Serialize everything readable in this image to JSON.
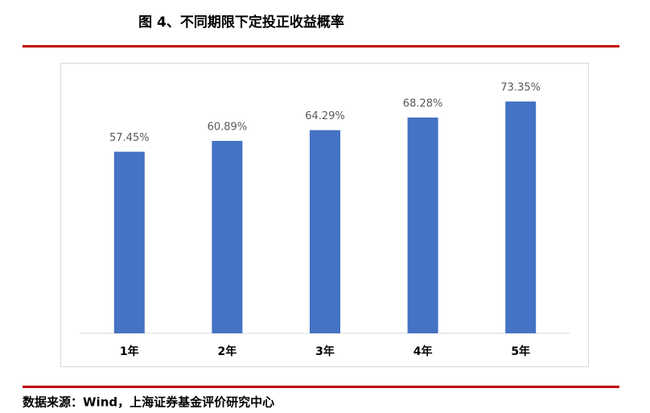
{
  "chart_data": {
    "type": "bar",
    "title": "图 4、不同期限下定投正收益概率",
    "categories": [
      "1年",
      "2年",
      "3年",
      "4年",
      "5年"
    ],
    "values": [
      57.45,
      60.89,
      64.29,
      68.28,
      73.35
    ],
    "value_labels": [
      "57.45%",
      "60.89%",
      "64.29%",
      "68.28%",
      "73.35%"
    ],
    "color": "#4472c4",
    "ylim": [
      0,
      80
    ],
    "source": "数据来源：Wind，上海证券基金评价研究中心"
  }
}
